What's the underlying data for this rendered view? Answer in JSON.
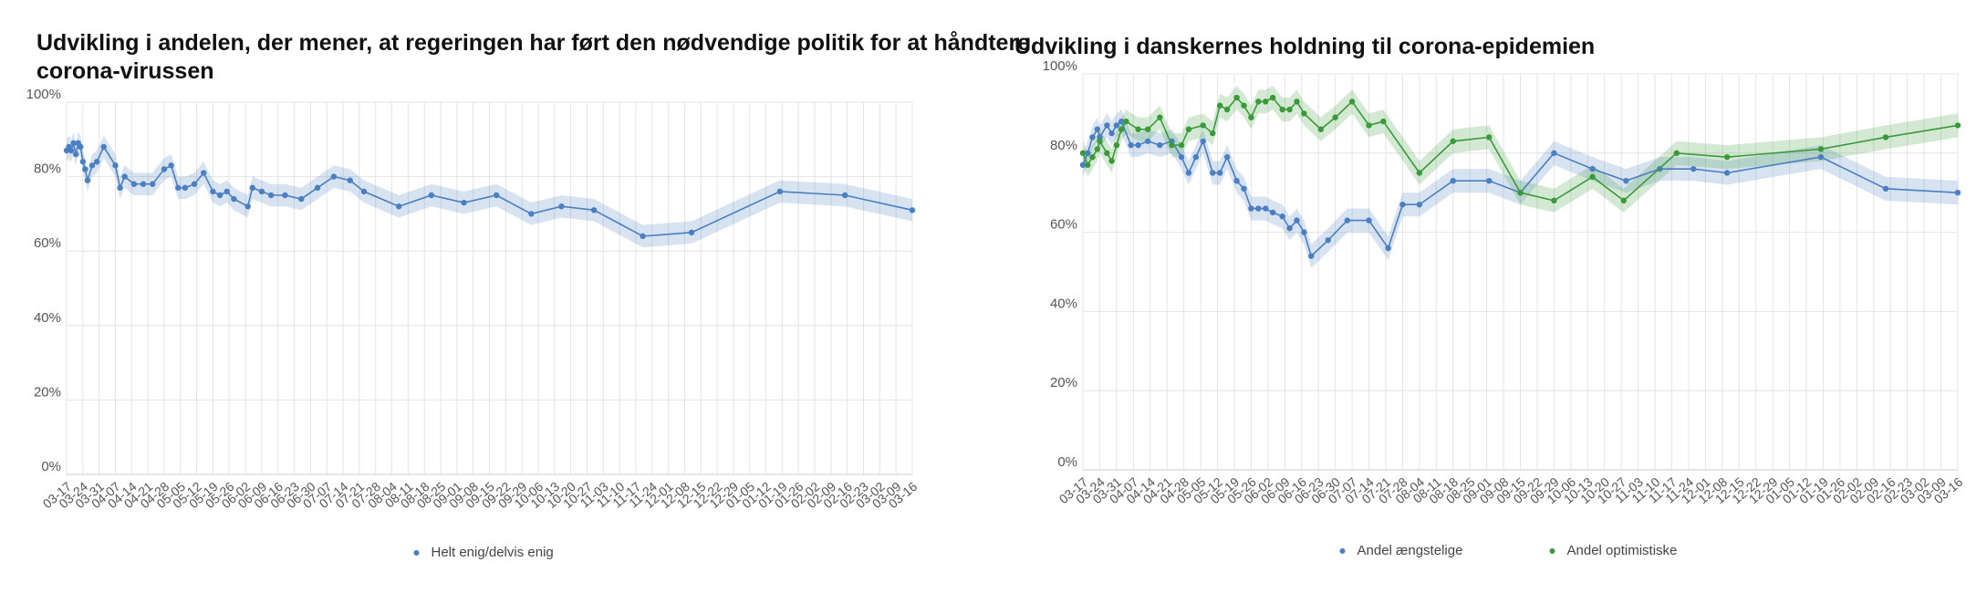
{
  "chart_data": [
    {
      "type": "line",
      "title": "Udvikling i andelen, der mener, at regeringen har ført den nødvendige politik for at håndtere corona-virussen",
      "xticks": [
        "03-17",
        "03-24",
        "03-31",
        "04-07",
        "04-14",
        "04-21",
        "04-28",
        "05-05",
        "05-12",
        "05-19",
        "05-26",
        "06-02",
        "06-09",
        "06-16",
        "06-23",
        "06-30",
        "07-07",
        "07-14",
        "07-21",
        "07-28",
        "08-04",
        "08-11",
        "08-18",
        "08-25",
        "09-01",
        "09-08",
        "09-15",
        "09-22",
        "09-29",
        "10-06",
        "10-13",
        "10-20",
        "10-27",
        "11-03",
        "11-10",
        "11-17",
        "11-24",
        "12-01",
        "12-08",
        "12-15",
        "12-22",
        "12-29",
        "01-05",
        "01-12",
        "01-19",
        "01-26",
        "02-02",
        "02-09",
        "02-16",
        "02-23",
        "03-02",
        "03-09",
        "03-16"
      ],
      "ylim": [
        0,
        100
      ],
      "yticks": [
        {
          "value": 0,
          "label": "0%"
        },
        {
          "value": 20,
          "label": "20%"
        },
        {
          "value": 40,
          "label": "40%"
        },
        {
          "value": 60,
          "label": "60%"
        },
        {
          "value": 80,
          "label": "80%"
        },
        {
          "value": 100,
          "label": "100%"
        }
      ],
      "grid": true,
      "legend": "bottom",
      "series": [
        {
          "name": "Helt enig/delvis enig",
          "color": "#4a7fc1",
          "ci": 3,
          "x": [
            "03-17",
            "03-18",
            "03-19",
            "03-20",
            "03-21",
            "03-22",
            "03-23",
            "03-24",
            "03-25",
            "03-26",
            "03-28",
            "03-30",
            "04-02",
            "04-07",
            "04-09",
            "04-11",
            "04-15",
            "04-19",
            "04-23",
            "04-28",
            "05-01",
            "05-04",
            "05-07",
            "05-11",
            "05-15",
            "05-19",
            "05-22",
            "05-25",
            "05-28",
            "06-03",
            "06-05",
            "06-09",
            "06-13",
            "06-19",
            "06-26",
            "07-03",
            "07-10",
            "07-17",
            "07-23",
            "08-07",
            "08-21",
            "09-04",
            "09-18",
            "10-03",
            "10-16",
            "10-30",
            "11-20",
            "12-11",
            "01-18",
            "02-15",
            "03-16"
          ],
          "values": [
            87,
            88,
            87,
            89,
            86,
            89,
            88,
            84,
            82,
            79,
            83,
            84,
            88,
            83,
            77,
            80,
            78,
            78,
            78,
            82,
            83,
            77,
            77,
            78,
            81,
            76,
            75,
            76,
            74,
            72,
            77,
            76,
            75,
            75,
            74,
            77,
            80,
            79,
            76,
            72,
            75,
            73,
            75,
            70,
            72,
            71,
            64,
            65,
            76,
            75,
            71
          ]
        }
      ]
    },
    {
      "type": "line",
      "title": "Udvikling i danskernes holdning til corona-epidemien",
      "xticks": [
        "03-17",
        "03-24",
        "03-31",
        "04-07",
        "04-14",
        "04-21",
        "04-28",
        "05-05",
        "05-12",
        "05-19",
        "05-26",
        "06-02",
        "06-09",
        "06-16",
        "06-23",
        "06-30",
        "07-07",
        "07-14",
        "07-21",
        "07-28",
        "08-04",
        "08-11",
        "08-18",
        "08-25",
        "09-01",
        "09-08",
        "09-15",
        "09-22",
        "09-29",
        "10-06",
        "10-13",
        "10-20",
        "10-27",
        "11-03",
        "11-10",
        "11-17",
        "11-24",
        "12-01",
        "12-08",
        "12-15",
        "12-22",
        "12-29",
        "01-05",
        "01-12",
        "01-19",
        "01-26",
        "02-02",
        "02-09",
        "02-16",
        "02-23",
        "03-02",
        "03-09",
        "03-16"
      ],
      "ylim": [
        0,
        100
      ],
      "yticks": [
        {
          "value": 0,
          "label": "0%"
        },
        {
          "value": 20,
          "label": "20%"
        },
        {
          "value": 40,
          "label": "40%"
        },
        {
          "value": 60,
          "label": "60%"
        },
        {
          "value": 80,
          "label": "80%"
        },
        {
          "value": 100,
          "label": "100%"
        }
      ],
      "grid": true,
      "legend": "bottom",
      "series": [
        {
          "name": "Andel ængstelige",
          "color": "#4a7fc1",
          "ci": 3,
          "x": [
            "03-17",
            "03-19",
            "03-21",
            "03-23",
            "03-24",
            "03-27",
            "03-29",
            "03-31",
            "04-02",
            "04-06",
            "04-09",
            "04-13",
            "04-18",
            "04-23",
            "04-27",
            "04-30",
            "05-03",
            "05-06",
            "05-10",
            "05-13",
            "05-16",
            "05-20",
            "05-23",
            "05-26",
            "05-29",
            "06-01",
            "06-04",
            "06-08",
            "06-11",
            "06-14",
            "06-17",
            "06-20",
            "06-27",
            "07-05",
            "07-14",
            "07-22",
            "07-28",
            "08-04",
            "08-18",
            "09-02",
            "09-15",
            "09-29",
            "10-15",
            "10-29",
            "11-12",
            "11-26",
            "12-10",
            "01-18",
            "02-14",
            "03-16"
          ],
          "values": [
            77,
            80,
            84,
            86,
            84,
            87,
            85,
            87,
            88,
            82,
            82,
            83,
            82,
            83,
            79,
            75,
            79,
            83,
            75,
            75,
            79,
            73,
            71,
            66,
            66,
            66,
            65,
            64,
            61,
            63,
            60,
            54,
            58,
            63,
            63,
            56,
            67,
            67,
            73,
            73,
            70,
            80,
            76,
            73,
            76,
            76,
            75,
            79,
            71,
            70
          ]
        },
        {
          "name": "Andel optimistiske",
          "color": "#3a9a3a",
          "ci": 3,
          "x": [
            "03-17",
            "03-19",
            "03-21",
            "03-23",
            "03-24",
            "03-27",
            "03-29",
            "03-31",
            "04-02",
            "04-04",
            "04-09",
            "04-13",
            "04-18",
            "04-23",
            "04-27",
            "04-30",
            "05-06",
            "05-10",
            "05-13",
            "05-16",
            "05-20",
            "05-23",
            "05-26",
            "05-29",
            "06-01",
            "06-04",
            "06-08",
            "06-11",
            "06-14",
            "06-17",
            "06-24",
            "06-30",
            "07-07",
            "07-14",
            "07-20",
            "08-04",
            "08-18",
            "09-02",
            "09-15",
            "09-29",
            "10-15",
            "10-28",
            "11-19",
            "12-10",
            "01-18",
            "02-14",
            "03-16"
          ],
          "values": [
            80,
            77,
            79,
            81,
            83,
            80,
            78,
            82,
            86,
            88,
            86,
            86,
            89,
            82,
            82,
            86,
            87,
            85,
            92,
            91,
            94,
            92,
            89,
            93,
            93,
            94,
            91,
            91,
            93,
            90,
            86,
            89,
            93,
            87,
            88,
            75,
            83,
            84,
            70,
            68,
            74,
            68,
            80,
            79,
            81,
            84,
            87
          ]
        }
      ]
    }
  ]
}
